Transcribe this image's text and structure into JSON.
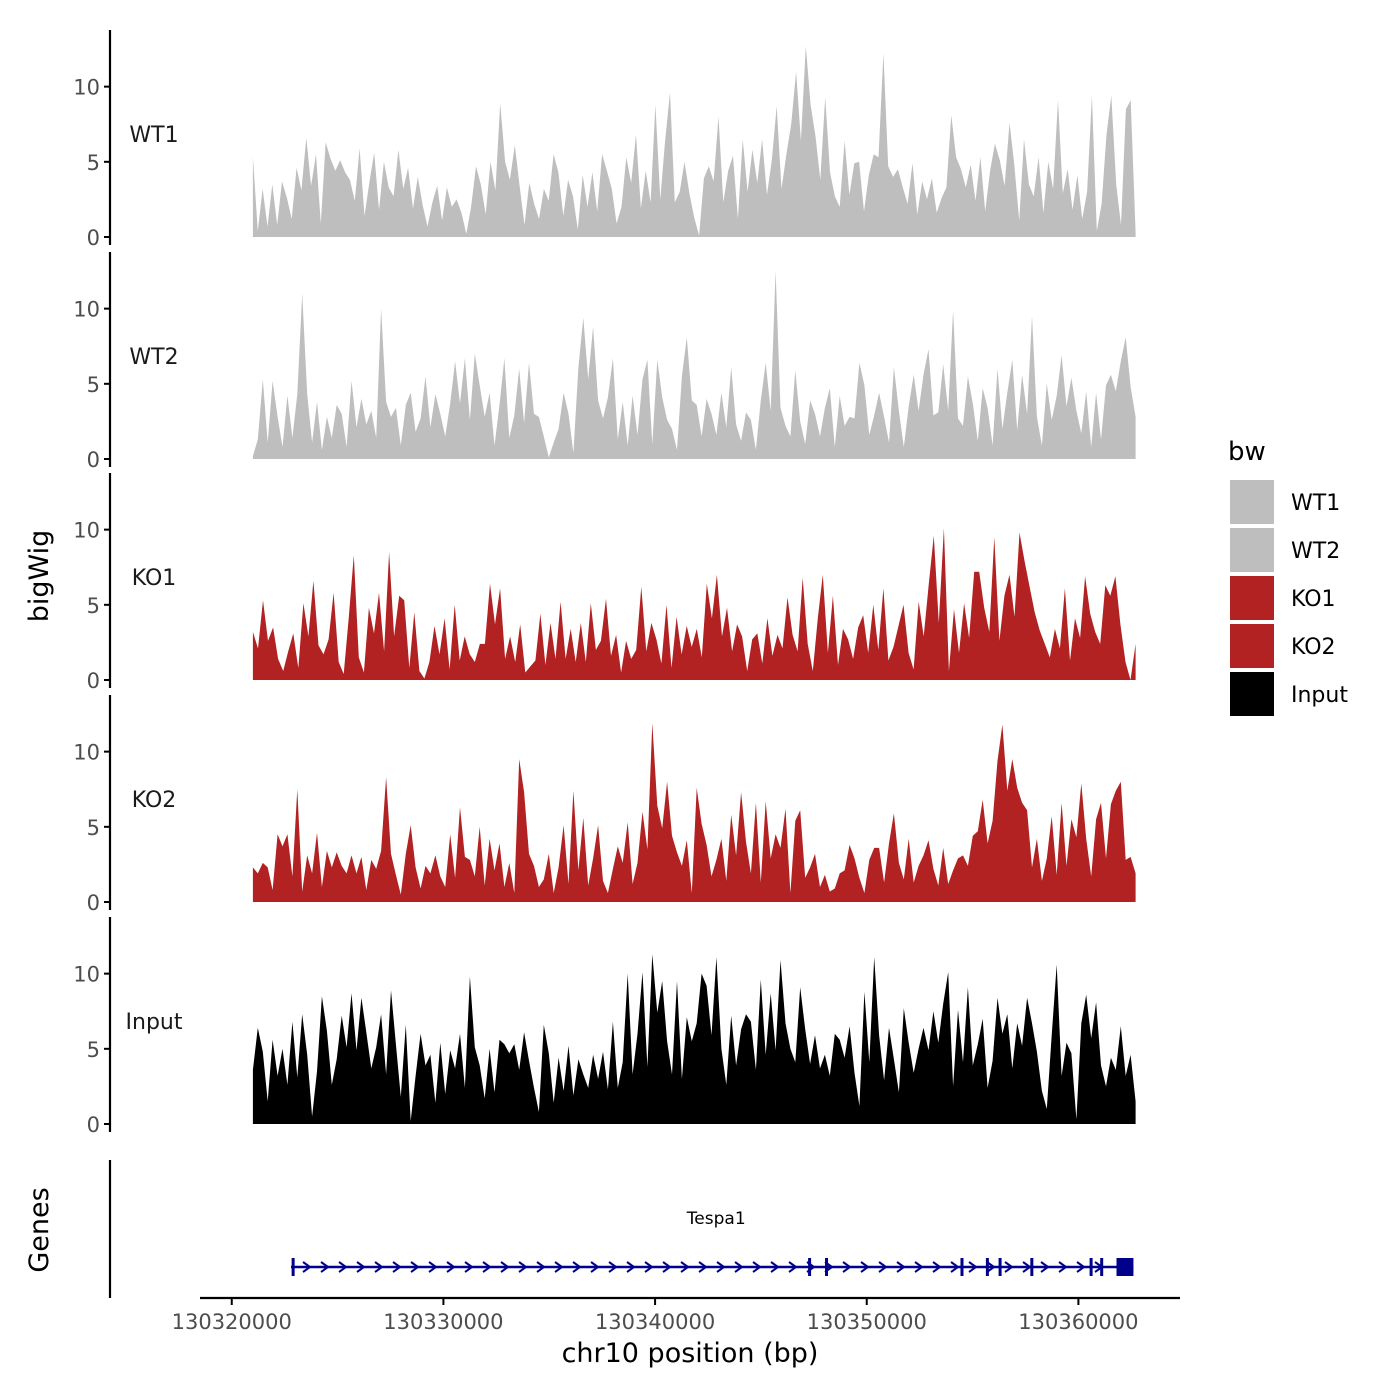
{
  "chart_data": {
    "type": "area",
    "title": "",
    "chromosome": "chr10",
    "xlabel": "chr10 position (bp)",
    "ylabel": "bigWig",
    "genes_label": "Genes",
    "xlim": [
      130318500,
      130364800
    ],
    "data_range": [
      130321000,
      130362700
    ],
    "xticks": [
      130320000,
      130330000,
      130340000,
      130350000,
      130360000
    ],
    "xtick_labels": [
      "130320000",
      "130330000",
      "130340000",
      "130350000",
      "130360000"
    ],
    "ylim": [
      0,
      13.5
    ],
    "yticks": [
      0,
      5,
      10
    ],
    "ytick_labels": [
      "0",
      "5",
      "10"
    ],
    "legend": {
      "title": "bw",
      "position": "right",
      "entries": [
        {
          "label": "WT1",
          "color": "#BEBEBE"
        },
        {
          "label": "WT2",
          "color": "#BEBEBE"
        },
        {
          "label": "KO1",
          "color": "#B22222"
        },
        {
          "label": "KO2",
          "color": "#B22222"
        },
        {
          "label": "Input",
          "color": "#000000"
        }
      ]
    },
    "series": [
      {
        "name": "WT1",
        "color": "#BEBEBE",
        "values": [
          5.3,
          0.4,
          3.2,
          0.7,
          3.5,
          0.8,
          3.7,
          2.6,
          1.2,
          4.6,
          3.1,
          6.6,
          3.4,
          5.5,
          0.9,
          6.3,
          5.2,
          4.4,
          5.1,
          4.3,
          3.8,
          2.4,
          5.9,
          1.4,
          3.6,
          5.6,
          1.8,
          5.0,
          3.3,
          2.7,
          5.8,
          3.2,
          4.6,
          1.9,
          4.0,
          2.1,
          0.7,
          2.3,
          3.4,
          1.1,
          3.3,
          2.0,
          2.5,
          1.6,
          0.2,
          2.0,
          4.7,
          3.5,
          1.5,
          5.0,
          3.1,
          8.9,
          5.0,
          3.8,
          6.1,
          3.4,
          0.8,
          3.6,
          2.2,
          1.2,
          3.2,
          2.4,
          5.5,
          4.3,
          1.4,
          3.8,
          2.7,
          0.5,
          4.1,
          2.0,
          4.3,
          1.7,
          5.5,
          4.4,
          3.2,
          0.9,
          2.0,
          5.3,
          3.6,
          6.8,
          1.9,
          4.4,
          2.3,
          8.8,
          2.5,
          6.4,
          9.6,
          2.3,
          3.0,
          5.0,
          2.9,
          1.3,
          0.1,
          3.9,
          4.7,
          3.7,
          8.0,
          2.3,
          4.4,
          5.4,
          1.2,
          6.5,
          3.0,
          5.8,
          3.6,
          6.5,
          2.8,
          5.1,
          8.7,
          3.2,
          5.5,
          7.5,
          11.0,
          6.4,
          12.7,
          8.8,
          6.7,
          3.8,
          9.3,
          4.3,
          2.7,
          2.0,
          6.4,
          2.8,
          4.9,
          5.0,
          1.7,
          4.1,
          5.5,
          5.3,
          12.2,
          4.7,
          4.0,
          4.5,
          3.3,
          2.2,
          4.9,
          1.5,
          3.7,
          2.5,
          3.9,
          1.6,
          2.6,
          3.3,
          8.1,
          5.3,
          4.5,
          3.3,
          4.8,
          2.4,
          5.3,
          1.7,
          4.4,
          6.2,
          5.1,
          3.4,
          7.6,
          4.8,
          1.1,
          6.5,
          3.5,
          2.7,
          5.3,
          1.6,
          5.0,
          3.2,
          9.1,
          2.9,
          4.5,
          1.8,
          4.1,
          1.2,
          3.0,
          9.4,
          0.4,
          2.2,
          6.8,
          9.4,
          3.5,
          0.8,
          8.5,
          9.1,
          0.3
        ]
      },
      {
        "name": "WT2",
        "color": "#BEBEBE",
        "values": [
          0.2,
          1.3,
          5.3,
          1.1,
          5.2,
          2.8,
          0.8,
          4.2,
          1.4,
          4.3,
          11.0,
          4.3,
          1.1,
          3.8,
          0.6,
          2.8,
          1.4,
          3.6,
          3.0,
          0.8,
          5.2,
          2.1,
          4.0,
          2.3,
          3.2,
          1.4,
          10.0,
          3.8,
          2.8,
          3.4,
          0.9,
          3.6,
          4.4,
          1.8,
          2.7,
          5.5,
          2.1,
          4.3,
          3.0,
          1.5,
          3.7,
          6.5,
          3.7,
          6.7,
          2.6,
          7.0,
          4.9,
          2.8,
          4.4,
          0.9,
          3.6,
          6.7,
          1.4,
          2.9,
          6.0,
          2.4,
          6.4,
          3.0,
          2.8,
          1.5,
          0.1,
          1.1,
          2.0,
          4.4,
          3.0,
          0.4,
          6.1,
          9.4,
          5.3,
          8.8,
          3.9,
          2.7,
          4.1,
          6.7,
          1.3,
          3.8,
          0.9,
          4.2,
          1.6,
          5.3,
          6.6,
          1.0,
          6.6,
          4.1,
          2.6,
          2.0,
          0.6,
          5.5,
          8.1,
          3.9,
          3.6,
          1.5,
          4.0,
          3.0,
          1.6,
          4.4,
          2.1,
          6.1,
          2.3,
          1.2,
          3.1,
          2.6,
          0.6,
          3.9,
          6.4,
          3.2,
          12.5,
          3.4,
          2.2,
          1.5,
          5.9,
          2.5,
          1.0,
          3.9,
          3.0,
          1.5,
          3.4,
          4.7,
          0.8,
          4.2,
          2.2,
          2.8,
          2.7,
          6.4,
          4.9,
          1.6,
          2.9,
          4.4,
          2.8,
          1.1,
          6.1,
          3.2,
          0.8,
          3.5,
          5.6,
          3.2,
          5.6,
          7.3,
          2.9,
          3.1,
          6.3,
          3.2,
          9.9,
          2.7,
          2.2,
          5.5,
          3.7,
          1.2,
          4.7,
          3.4,
          0.9,
          6.0,
          2.0,
          4.4,
          6.6,
          1.9,
          5.6,
          3.0,
          9.5,
          2.8,
          0.9,
          5.0,
          2.6,
          4.2,
          6.9,
          3.5,
          5.4,
          3.2,
          1.7,
          4.5,
          0.8,
          4.4,
          1.3,
          4.9,
          5.6,
          4.5,
          6.5,
          8.1,
          4.8,
          2.8
        ]
      },
      {
        "name": "KO1",
        "color": "#B22222",
        "values": [
          3.2,
          2.1,
          5.3,
          2.6,
          3.5,
          1.4,
          0.6,
          1.9,
          3.1,
          0.8,
          5.1,
          2.9,
          6.6,
          2.3,
          1.7,
          2.7,
          5.8,
          1.2,
          0.4,
          4.1,
          8.3,
          1.5,
          0.5,
          4.8,
          3.1,
          5.8,
          1.9,
          8.5,
          2.9,
          5.6,
          5.3,
          0.8,
          4.5,
          0.6,
          0.1,
          1.2,
          3.6,
          1.7,
          4.1,
          0.7,
          5.0,
          1.3,
          2.9,
          1.7,
          1.2,
          2.4,
          2.4,
          6.4,
          3.7,
          6.1,
          1.4,
          2.9,
          1.2,
          3.7,
          0.5,
          0.9,
          1.3,
          4.4,
          1.0,
          3.8,
          1.4,
          5.2,
          1.4,
          3.4,
          1.2,
          3.8,
          1.2,
          5.1,
          2.0,
          2.6,
          5.4,
          1.6,
          3.0,
          0.5,
          2.6,
          1.4,
          2.0,
          6.2,
          1.9,
          3.8,
          2.7,
          1.1,
          5.0,
          0.8,
          4.2,
          1.7,
          3.6,
          2.2,
          3.4,
          1.5,
          6.4,
          4.1,
          7.0,
          2.9,
          4.8,
          1.9,
          3.7,
          2.9,
          0.6,
          2.7,
          3.1,
          1.1,
          4.1,
          1.6,
          3.0,
          2.1,
          5.5,
          3.0,
          1.9,
          6.8,
          2.4,
          0.6,
          4.1,
          7.0,
          1.8,
          5.6,
          1.0,
          3.4,
          2.7,
          1.4,
          3.5,
          4.3,
          1.8,
          5.0,
          2.0,
          6.1,
          1.3,
          2.2,
          3.6,
          5.0,
          1.8,
          0.7,
          5.2,
          2.9,
          6.4,
          9.6,
          3.8,
          10.1,
          0.6,
          4.7,
          1.8,
          5.1,
          2.8,
          7.2,
          7.2,
          4.8,
          3.2,
          9.5,
          2.6,
          5.6,
          7.0,
          4.2,
          9.8,
          7.9,
          6.2,
          4.5,
          3.3,
          2.4,
          1.5,
          3.4,
          2.1,
          6.1,
          1.3,
          4.1,
          2.8,
          6.9,
          4.4,
          3.2,
          2.4,
          6.3,
          5.6,
          6.9,
          3.7,
          1.2,
          0.0,
          2.4
        ]
      },
      {
        "name": "KO2",
        "color": "#B22222",
        "values": [
          2.3,
          1.9,
          2.6,
          2.3,
          0.8,
          4.5,
          3.7,
          4.5,
          1.7,
          7.5,
          0.7,
          3.1,
          1.9,
          4.6,
          1.0,
          3.4,
          2.3,
          3.3,
          2.4,
          1.9,
          3.1,
          1.9,
          3.0,
          0.8,
          2.8,
          2.2,
          3.4,
          8.3,
          3.2,
          1.8,
          0.5,
          3.2,
          5.1,
          2.3,
          0.9,
          2.4,
          1.9,
          3.1,
          1.7,
          1.0,
          4.5,
          1.6,
          6.3,
          3.0,
          2.8,
          1.7,
          5.0,
          1.1,
          4.2,
          2.1,
          3.9,
          1.0,
          2.6,
          0.6,
          9.5,
          7.3,
          3.2,
          2.4,
          1.0,
          1.5,
          3.2,
          0.6,
          2.3,
          5.1,
          1.2,
          7.4,
          2.1,
          5.6,
          1.1,
          2.9,
          5.1,
          1.4,
          0.6,
          2.2,
          3.7,
          2.6,
          5.3,
          1.2,
          2.6,
          6.0,
          3.5,
          11.9,
          6.4,
          4.9,
          8.0,
          4.4,
          3.3,
          2.4,
          4.1,
          0.6,
          7.6,
          5.2,
          3.8,
          1.7,
          2.8,
          4.2,
          1.4,
          5.8,
          3.1,
          7.3,
          4.0,
          1.9,
          6.6,
          1.3,
          6.7,
          2.9,
          4.5,
          3.6,
          6.2,
          0.6,
          5.4,
          6.1,
          1.6,
          2.3,
          3.2,
          1.0,
          1.8,
          0.7,
          0.9,
          1.9,
          2.1,
          3.8,
          2.9,
          1.6,
          0.6,
          2.8,
          3.6,
          3.6,
          1.3,
          3.9,
          5.9,
          2.6,
          1.5,
          4.2,
          1.3,
          2.4,
          3.1,
          4.1,
          2.2,
          1.1,
          3.6,
          1.2,
          2.1,
          2.9,
          3.1,
          2.4,
          4.4,
          4.7,
          6.8,
          3.9,
          5.4,
          9.4,
          11.8,
          7.4,
          9.5,
          7.6,
          6.6,
          6.1,
          2.3,
          4.2,
          1.4,
          2.9,
          5.7,
          1.8,
          6.6,
          2.4,
          5.5,
          4.3,
          7.9,
          4.2,
          1.7,
          5.5,
          6.6,
          2.9,
          6.5,
          7.4,
          8.0,
          2.8,
          3.0,
          1.9
        ]
      },
      {
        "name": "Input",
        "color": "#000000",
        "values": [
          3.6,
          6.4,
          4.8,
          1.5,
          5.6,
          3.2,
          5.0,
          2.6,
          6.8,
          3.1,
          7.3,
          4.6,
          0.5,
          3.5,
          8.5,
          6.2,
          2.6,
          4.3,
          7.2,
          5.1,
          8.7,
          4.9,
          8.4,
          6.1,
          3.7,
          5.1,
          7.3,
          3.3,
          8.9,
          5.3,
          1.8,
          6.6,
          0.2,
          3.2,
          6.0,
          3.9,
          4.6,
          1.4,
          5.4,
          2.0,
          4.9,
          3.7,
          6.0,
          2.4,
          9.8,
          5.1,
          3.9,
          1.7,
          5.0,
          2.1,
          5.6,
          5.3,
          4.7,
          5.3,
          3.6,
          6.1,
          4.2,
          2.4,
          0.8,
          6.6,
          4.7,
          1.4,
          4.4,
          2.2,
          5.2,
          1.9,
          4.3,
          3.3,
          2.4,
          4.6,
          3.0,
          4.8,
          2.3,
          6.8,
          2.4,
          4.1,
          10.0,
          3.3,
          6.0,
          10.1,
          3.8,
          11.3,
          7.4,
          9.5,
          5.5,
          3.3,
          9.5,
          3.0,
          7.1,
          5.5,
          6.7,
          10.0,
          9.2,
          5.9,
          11.1,
          5.0,
          2.6,
          7.2,
          3.9,
          6.3,
          7.3,
          6.8,
          3.6,
          9.6,
          4.6,
          8.7,
          4.9,
          10.9,
          6.7,
          5.0,
          4.1,
          9.1,
          6.3,
          4.0,
          5.9,
          3.7,
          4.6,
          3.2,
          6.0,
          5.6,
          4.4,
          6.5,
          3.4,
          1.2,
          8.8,
          4.1,
          11.1,
          5.9,
          2.9,
          6.4,
          4.3,
          2.1,
          7.7,
          5.4,
          3.4,
          5.0,
          6.4,
          4.9,
          7.5,
          5.4,
          8.0,
          10.1,
          2.5,
          7.6,
          4.1,
          9.1,
          3.9,
          5.3,
          7.0,
          2.4,
          4.2,
          8.4,
          6.0,
          7.3,
          3.7,
          6.7,
          5.2,
          8.4,
          6.7,
          4.8,
          2.2,
          1.0,
          5.9,
          10.6,
          3.2,
          5.4,
          4.7,
          0.3,
          6.7,
          8.6,
          5.7,
          8.1,
          3.9,
          2.5,
          4.4,
          3.6,
          6.5,
          3.2,
          4.6,
          1.5
        ]
      }
    ],
    "gene": {
      "name": "Tespa1",
      "start": 130322800,
      "end": 130362600,
      "strand": "+",
      "color": "#00008B",
      "exons": [
        130322900,
        130347300,
        130348100,
        130354500,
        130355700,
        130356300,
        130357800,
        130360600,
        130361100
      ],
      "last_exon": [
        130361800,
        130362600
      ]
    }
  }
}
